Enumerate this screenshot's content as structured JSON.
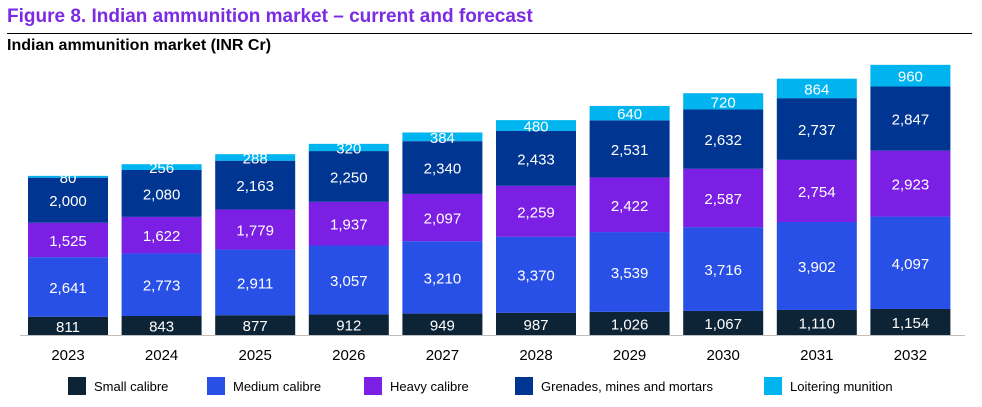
{
  "figure_title": "Figure 8. Indian ammunition market – current and forecast",
  "chart_data": {
    "type": "bar",
    "stacked": true,
    "title": "Indian ammunition market (INR Cr)",
    "xlabel": "",
    "ylabel": "",
    "categories": [
      "2023",
      "2024",
      "2025",
      "2026",
      "2027",
      "2028",
      "2029",
      "2030",
      "2031",
      "2032"
    ],
    "series": [
      {
        "name": "Small calibre",
        "color": "#0d2437",
        "values": [
          811,
          843,
          877,
          912,
          949,
          987,
          1026,
          1067,
          1110,
          1154
        ],
        "labels": [
          "811",
          "843",
          "877",
          "912",
          "949",
          "987",
          "1,026",
          "1,067",
          "1,110",
          "1,154"
        ]
      },
      {
        "name": "Medium calibre",
        "color": "#2950e6",
        "values": [
          2641,
          2773,
          2911,
          3057,
          3210,
          3370,
          3539,
          3716,
          3902,
          4097
        ],
        "labels": [
          "2,641",
          "2,773",
          "2,911",
          "3,057",
          "3,210",
          "3,370",
          "3,539",
          "3,716",
          "3,902",
          "4,097"
        ]
      },
      {
        "name": "Heavy calibre",
        "color": "#7b1fe4",
        "values": [
          1525,
          1622,
          1779,
          1937,
          2097,
          2259,
          2422,
          2587,
          2754,
          2923
        ],
        "labels": [
          "1,525",
          "1,622",
          "1,779",
          "1,937",
          "2,097",
          "2,259",
          "2,422",
          "2,587",
          "2,754",
          "2,923"
        ]
      },
      {
        "name": "Grenades, mines and mortars",
        "color": "#003591",
        "values": [
          2000,
          2080,
          2163,
          2250,
          2340,
          2433,
          2531,
          2632,
          2737,
          2847
        ],
        "labels": [
          "2,000",
          "2,080",
          "2,163",
          "2,250",
          "2,340",
          "2,433",
          "2,531",
          "2,632",
          "2,737",
          "2,847"
        ]
      },
      {
        "name": "Loitering munition",
        "color": "#00b4f0",
        "values": [
          80,
          256,
          288,
          320,
          384,
          480,
          640,
          720,
          864,
          960
        ],
        "labels": [
          "80",
          "256",
          "288",
          "320",
          "384",
          "480",
          "640",
          "720",
          "864",
          "960"
        ]
      }
    ],
    "label_colors": [
      "#ffffff",
      "#ffffff",
      "#ffffff",
      "#ffffff",
      "#ffffff"
    ],
    "legend_position": "bottom",
    "grid": false
  }
}
